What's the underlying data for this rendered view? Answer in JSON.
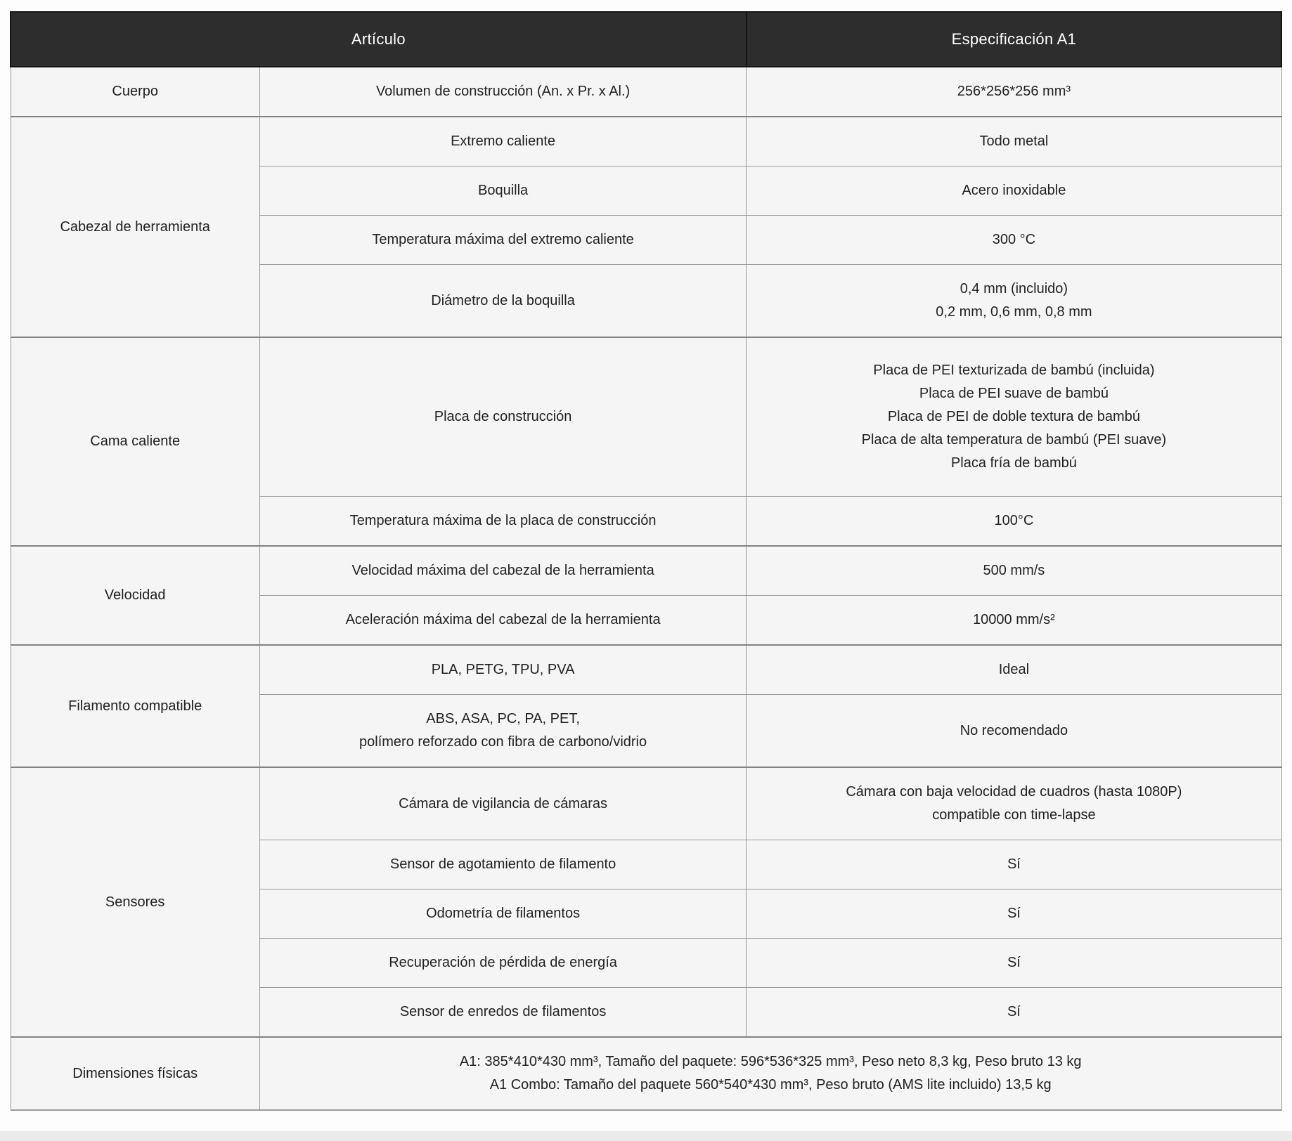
{
  "table": {
    "header": {
      "articulo": "Artículo",
      "especificacion": "Especificación A1"
    },
    "sections": [
      {
        "category": "Cuerpo",
        "rows": [
          {
            "item": [
              "Volumen de construcción (An. x Pr. x Al.)"
            ],
            "spec": [
              "256*256*256 mm³"
            ]
          }
        ]
      },
      {
        "category": "Cabezal de herramienta",
        "rows": [
          {
            "item": [
              "Extremo caliente"
            ],
            "spec": [
              "Todo metal"
            ]
          },
          {
            "item": [
              "Boquilla"
            ],
            "spec": [
              "Acero inoxidable"
            ]
          },
          {
            "item": [
              "Temperatura máxima del extremo caliente"
            ],
            "spec": [
              "300 °C"
            ]
          },
          {
            "item": [
              "Diámetro de la boquilla"
            ],
            "spec": [
              "0,4 mm (incluido)",
              "0,2 mm, 0,6 mm, 0,8 mm"
            ]
          }
        ]
      },
      {
        "category": "Cama caliente",
        "rows": [
          {
            "item": [
              "Placa de construcción"
            ],
            "spec": [
              "Placa de PEI texturizada de bambú (incluida)",
              "Placa de PEI suave de bambú",
              "Placa de PEI de doble textura de bambú",
              "Placa de alta temperatura de bambú (PEI suave)",
              "Placa fría de bambú"
            ]
          },
          {
            "item": [
              "Temperatura máxima de la placa de construcción"
            ],
            "spec": [
              "100°C"
            ]
          }
        ]
      },
      {
        "category": "Velocidad",
        "rows": [
          {
            "item": [
              "Velocidad máxima del cabezal de la herramienta"
            ],
            "spec": [
              "500 mm/s"
            ]
          },
          {
            "item": [
              "Aceleración máxima del cabezal de la herramienta"
            ],
            "spec": [
              "10000 mm/s²"
            ]
          }
        ]
      },
      {
        "category": "Filamento compatible",
        "rows": [
          {
            "item": [
              "PLA, PETG, TPU, PVA"
            ],
            "spec": [
              "Ideal"
            ]
          },
          {
            "item": [
              "ABS, ASA, PC, PA, PET,",
              "polímero reforzado con fibra de carbono/vidrio"
            ],
            "spec": [
              "No recomendado"
            ]
          }
        ]
      },
      {
        "category": "Sensores",
        "rows": [
          {
            "item": [
              "Cámara de vigilancia de cámaras"
            ],
            "spec": [
              "Cámara con baja velocidad de cuadros (hasta 1080P)",
              "compatible con time-lapse"
            ]
          },
          {
            "item": [
              "Sensor de agotamiento de filamento"
            ],
            "spec": [
              "Sí"
            ]
          },
          {
            "item": [
              "Odometría de filamentos"
            ],
            "spec": [
              "Sí"
            ]
          },
          {
            "item": [
              "Recuperación de pérdida de energía"
            ],
            "spec": [
              "Sí"
            ]
          },
          {
            "item": [
              "Sensor de enredos de filamentos"
            ],
            "spec": [
              "Sí"
            ]
          }
        ]
      },
      {
        "category": "Dimensiones físicas",
        "rows": [
          {
            "spec": [
              "A1: 385*410*430 mm³, Tamaño del paquete: 596*536*325 mm³, Peso neto 8,3 kg, Peso bruto 13 kg",
              "A1 Combo: Tamaño del paquete 560*540*430 mm³, Peso bruto (AMS lite incluido) 13,5 kg"
            ]
          }
        ]
      }
    ],
    "colors": {
      "header_bg": "#2d2d2d",
      "header_text": "#ffffff",
      "cell_bg": "#f5f5f6",
      "border": "#9a9a9a",
      "text": "#222222"
    }
  }
}
